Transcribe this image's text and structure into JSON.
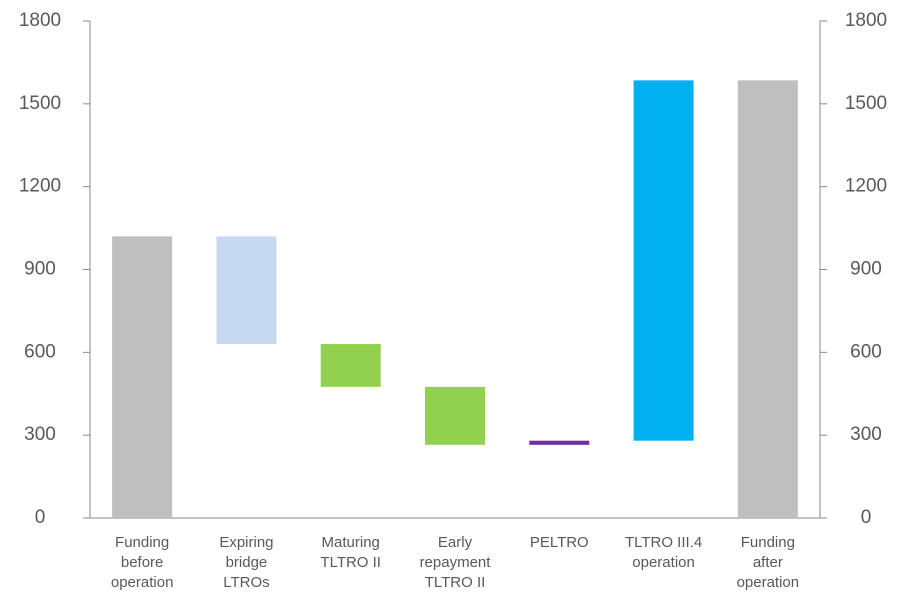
{
  "chart_data": {
    "type": "waterfall",
    "categories": [
      [
        "Funding",
        "before",
        "operation"
      ],
      [
        "Expiring",
        "bridge",
        "LTROs"
      ],
      [
        "Maturing",
        "TLTRO II"
      ],
      [
        "Early",
        "repayment",
        "TLTRO II"
      ],
      [
        "PELTRO"
      ],
      [
        "TLTRO III.4",
        "operation"
      ],
      [
        "Funding",
        "after",
        "operation"
      ]
    ],
    "values": [
      1020,
      -390,
      -155,
      -210,
      15,
      1305,
      1585
    ],
    "measure": [
      "absolute",
      "relative",
      "relative",
      "relative",
      "relative",
      "relative",
      "total"
    ],
    "colors": [
      "#bfbfbf",
      "#c6d9f0",
      "#92d050",
      "#92d050",
      "#7030a0",
      "#00b0f0",
      "#bfbfbf"
    ],
    "ylim": [
      0,
      1800
    ],
    "yticks": [
      0,
      300,
      600,
      900,
      1200,
      1500,
      1800
    ],
    "y2lim": [
      0,
      1800
    ],
    "y2ticks": [
      0,
      300,
      600,
      900,
      1200,
      1500,
      1800
    ]
  }
}
